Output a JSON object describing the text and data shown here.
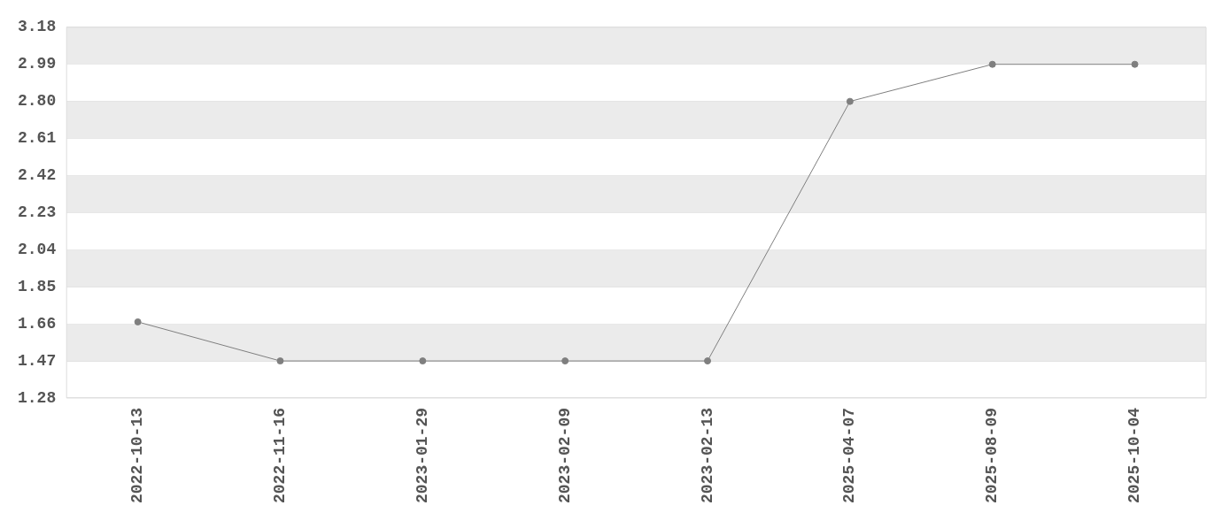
{
  "chart_data": {
    "type": "line",
    "categories": [
      "2022-10-13",
      "2022-11-16",
      "2023-01-29",
      "2023-02-09",
      "2023-02-13",
      "2025-04-07",
      "2025-08-09",
      "2025-10-04"
    ],
    "values": [
      1.67,
      1.47,
      1.47,
      1.47,
      1.47,
      2.8,
      2.99,
      2.99
    ],
    "color": "#7f7f7f",
    "marker": "circle",
    "line_style": "solid",
    "ylim": [
      1.28,
      3.18
    ],
    "yticks": [
      1.28,
      1.47,
      1.66,
      1.85,
      2.04,
      2.23,
      2.42,
      2.61,
      {
        "value": 2.8,
        "label": "2.80"
      },
      2.99,
      3.18
    ],
    "grid": "y",
    "legend": false
  }
}
